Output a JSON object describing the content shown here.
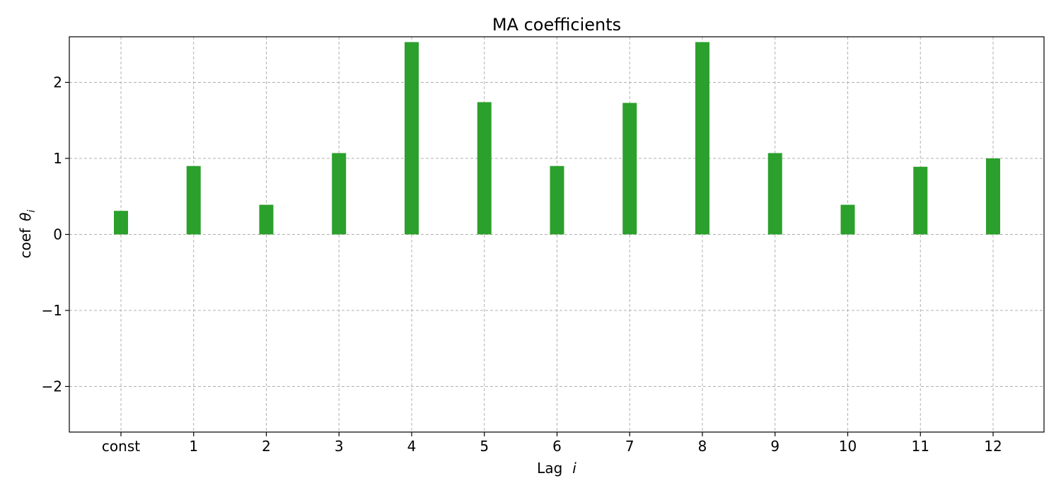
{
  "chart_data": {
    "type": "bar",
    "title": "MA coefficients",
    "xlabel_prefix": "Lag",
    "xlabel_symbol": "i",
    "ylabel_prefix": "coef",
    "ylabel_symbol": "θ",
    "ylabel_subscript": "i",
    "categories": [
      "const",
      "1",
      "2",
      "3",
      "4",
      "5",
      "6",
      "7",
      "8",
      "9",
      "10",
      "11",
      "12"
    ],
    "values": [
      0.31,
      0.9,
      0.39,
      1.07,
      2.53,
      1.74,
      0.9,
      1.73,
      2.53,
      1.07,
      0.39,
      0.89,
      1.0
    ],
    "ylim": [
      -2.6,
      2.6
    ],
    "yticks": [
      -2,
      -1,
      0,
      1,
      2
    ],
    "ytick_labels": [
      "−2",
      "−1",
      "0",
      "1",
      "2"
    ],
    "grid": true,
    "bar_color": "#2ca02c"
  }
}
